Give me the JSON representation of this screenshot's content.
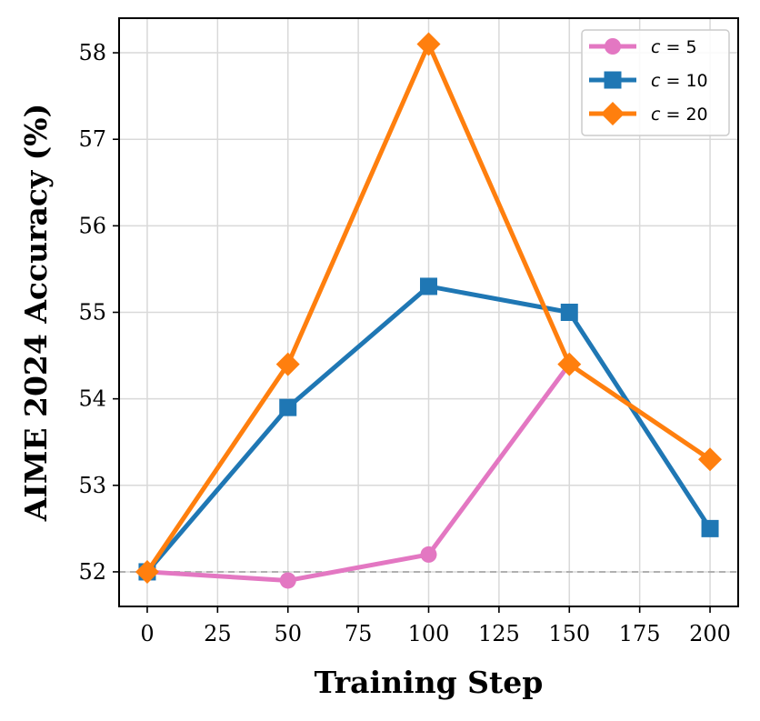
{
  "chart_data": {
    "type": "line",
    "title": "",
    "xlabel": "Training Step",
    "ylabel": "AIME 2024 Accuracy (%)",
    "xlim": [
      -10,
      210
    ],
    "ylim": [
      51.6,
      58.4
    ],
    "xticks": [
      0,
      25,
      50,
      75,
      100,
      125,
      150,
      175,
      200
    ],
    "yticks": [
      52,
      53,
      54,
      55,
      56,
      57,
      58
    ],
    "grid": true,
    "legend_position": "top-right",
    "reference_line": {
      "y": 52,
      "style": "dashed",
      "color": "#b0b0b0"
    },
    "x": [
      0,
      50,
      100,
      150,
      200
    ],
    "series": [
      {
        "name": "c = 5",
        "label_var": "c",
        "label_rest": " = 5",
        "color": "#e377c2",
        "marker": "circle",
        "x": [
          0,
          50,
          100,
          150
        ],
        "values": [
          52.0,
          51.9,
          52.2,
          54.4
        ]
      },
      {
        "name": "c = 10",
        "label_var": "c",
        "label_rest": " = 10",
        "color": "#1f77b4",
        "marker": "square",
        "x": [
          0,
          50,
          100,
          150,
          200
        ],
        "values": [
          52.0,
          53.9,
          55.3,
          55.0,
          52.5
        ]
      },
      {
        "name": "c = 20",
        "label_var": "c",
        "label_rest": " = 20",
        "color": "#ff7f0e",
        "marker": "diamond",
        "x": [
          0,
          50,
          100,
          150,
          200
        ],
        "values": [
          52.0,
          54.4,
          58.1,
          54.4,
          53.3
        ]
      }
    ]
  }
}
